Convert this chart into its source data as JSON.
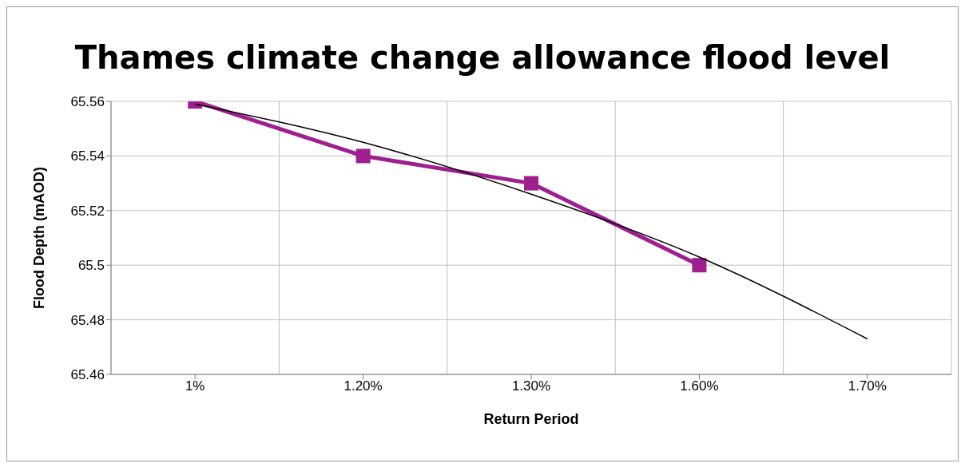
{
  "chart_data": {
    "type": "line",
    "title": "Thames climate change allowance flood level",
    "xlabel": "Return Period",
    "ylabel": "Flood Depth (mAOD)",
    "categories": [
      "1%",
      "1.20%",
      "1.30%",
      "1.60%",
      "1.70%"
    ],
    "series": [
      {
        "color": "#9e1f8e",
        "values": [
          65.56,
          65.54,
          65.53,
          65.5,
          null
        ],
        "marker": "square",
        "line_style": "solid"
      },
      {
        "color": "#000000",
        "values": [
          65.559,
          65.545,
          65.526,
          65.503,
          65.473
        ],
        "marker": "none",
        "line_style": "solid"
      }
    ],
    "ylim": [
      65.46,
      65.56
    ],
    "yticks": [
      65.46,
      65.48,
      65.5,
      65.52,
      65.54,
      65.56
    ],
    "grid": true,
    "legend": false
  }
}
